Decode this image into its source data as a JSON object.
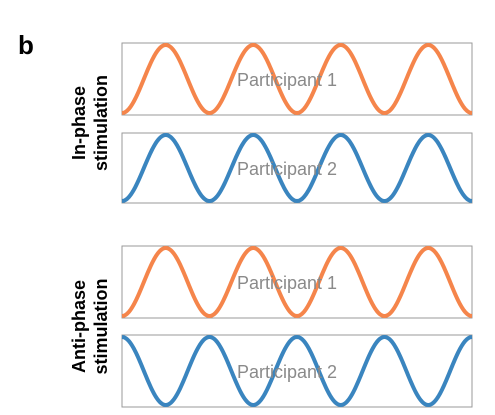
{
  "panel_label": "b",
  "groups": [
    {
      "title_lines": [
        "In-phase",
        "stimulation"
      ],
      "panels": [
        {
          "label": "Participant 1",
          "color": "#f5854b"
        },
        {
          "label": "Participant 2",
          "color": "#3a85bf"
        }
      ]
    },
    {
      "title_lines": [
        "Anti-phase",
        "stimulation"
      ],
      "panels": [
        {
          "label": "Participant 1",
          "color": "#f5854b"
        },
        {
          "label": "Participant 2",
          "color": "#3a85bf"
        }
      ]
    }
  ]
}
